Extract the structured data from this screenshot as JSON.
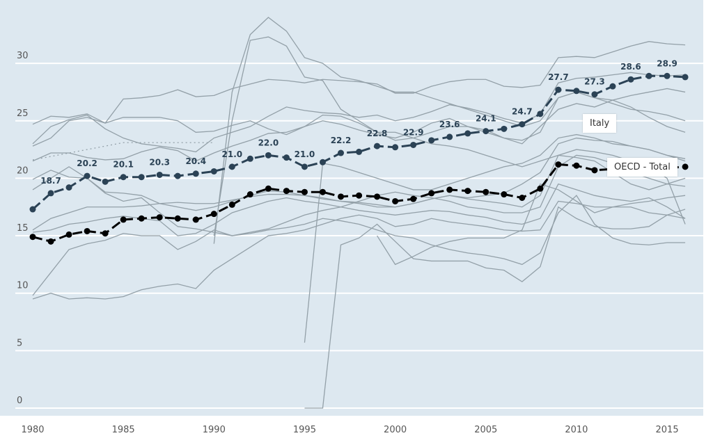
{
  "chart_data": {
    "type": "line",
    "xlim": [
      1980,
      2016
    ],
    "ylim": [
      0,
      30
    ],
    "x_ticks": [
      "1980",
      "1985",
      "1990",
      "1995",
      "2000",
      "2005",
      "2010",
      "2015"
    ],
    "y_ticks": [
      "0",
      "5",
      "10",
      "15",
      "20",
      "25",
      "30"
    ],
    "grid": true,
    "colors": {
      "background": "#dde8f0",
      "grid": "#ffffff",
      "other": "#93a0a8",
      "italy": "#2b4255",
      "oecd": "#000000"
    },
    "highlight": [
      {
        "name": "Italy",
        "style": "dashed",
        "x": [
          1980,
          1981,
          1982,
          1983,
          1984,
          1985,
          1986,
          1987,
          1988,
          1989,
          1990,
          1991,
          1992,
          1993,
          1994,
          1995,
          1996,
          1997,
          1998,
          1999,
          2000,
          2001,
          2002,
          2003,
          2004,
          2005,
          2006,
          2007,
          2008,
          2009,
          2010,
          2011,
          2012,
          2013,
          2014,
          2015,
          2016
        ],
        "values": [
          17.3,
          18.7,
          19.2,
          20.2,
          19.7,
          20.1,
          20.1,
          20.3,
          20.2,
          20.4,
          20.6,
          21.0,
          21.7,
          22.0,
          21.8,
          21.0,
          21.4,
          22.2,
          22.3,
          22.8,
          22.7,
          22.9,
          23.3,
          23.6,
          23.9,
          24.1,
          24.3,
          24.7,
          25.6,
          27.7,
          27.6,
          27.3,
          28.0,
          28.6,
          28.9,
          28.9,
          28.8
        ],
        "labels": {
          "1981": "18.7",
          "1983": "20.2",
          "1985": "20.1",
          "1987": "20.3",
          "1989": "20.4",
          "1991": "21.0",
          "1993": "22.0",
          "1995": "21.0",
          "1997": "22.2",
          "1999": "22.8",
          "2001": "22.9",
          "2003": "23.6",
          "2005": "24.1",
          "2007": "24.7",
          "2009": "27.7",
          "2011": "27.3",
          "2013": "28.6",
          "2015": "28.9"
        }
      },
      {
        "name": "OECD - Total",
        "style": "dashed",
        "x": [
          1980,
          1981,
          1982,
          1983,
          1984,
          1985,
          1986,
          1987,
          1988,
          1989,
          1990,
          1991,
          1992,
          1993,
          1994,
          1995,
          1996,
          1997,
          1998,
          1999,
          2000,
          2001,
          2002,
          2003,
          2004,
          2005,
          2006,
          2007,
          2008,
          2009,
          2010,
          2011,
          2012,
          2013,
          2014,
          2015,
          2016
        ],
        "values": [
          14.9,
          14.5,
          15.1,
          15.4,
          15.2,
          16.4,
          16.5,
          16.6,
          16.5,
          16.4,
          16.9,
          17.7,
          18.6,
          19.1,
          18.9,
          18.8,
          18.8,
          18.4,
          18.5,
          18.4,
          18.0,
          18.2,
          18.7,
          19.0,
          18.9,
          18.8,
          18.6,
          18.3,
          19.1,
          21.2,
          21.1,
          20.7,
          20.8,
          20.9,
          20.9,
          20.9,
          21.0
        ]
      }
    ],
    "others": [
      {
        "start": 1980,
        "values": [
          24.7,
          25.4,
          25.3,
          25.6,
          24.8,
          26.9,
          27.0,
          27.2,
          27.7,
          27.1,
          27.2,
          27.8,
          28.2,
          28.6,
          28.5,
          28.3,
          28.6,
          28.5,
          28.4,
          28.2,
          27.4,
          27.4,
          28.0,
          28.4,
          28.6,
          28.6,
          28.0,
          27.9,
          28.1,
          30.5,
          30.6,
          30.5,
          31.0,
          31.5,
          31.9,
          31.7,
          31.6
        ]
      },
      {
        "start": 1980,
        "values": [
          23.0,
          24.5,
          25.1,
          25.5,
          24.3,
          23.5,
          23.0,
          22.8,
          22.6,
          22.3,
          23.5,
          24.0,
          24.5,
          25.4,
          26.2,
          25.9,
          25.7,
          25.6,
          25.3,
          25.5,
          25.0,
          25.3,
          25.8,
          26.4,
          26.1,
          25.7,
          25.2,
          24.8,
          25.6,
          28.3,
          28.7,
          28.8,
          29.0,
          29.2,
          29.0,
          28.9,
          29.0
        ]
      },
      {
        "start": 1980,
        "values": [
          22.8,
          23.5,
          25.0,
          25.3,
          24.8,
          25.3,
          25.3,
          25.3,
          25.0,
          24.0,
          24.1,
          24.6,
          25.0,
          24.3,
          23.8,
          24.5,
          25.5,
          25.4,
          24.8,
          24.0,
          23.3,
          23.5,
          24.0,
          24.5,
          24.5,
          24.0,
          23.5,
          23.3,
          24.0,
          27.0,
          27.5,
          27.0,
          26.8,
          26.2,
          25.3,
          24.5,
          24.0
        ]
      },
      {
        "start": 1980,
        "values": [
          21.5,
          22.2,
          22.2,
          21.8,
          21.6,
          21.7,
          22.3,
          22.7,
          22.4,
          21.5,
          22.2,
          22.8,
          23.3,
          23.9,
          24.0,
          24.5,
          25.0,
          24.7,
          24.2,
          23.8,
          23.5,
          24.0,
          24.8,
          25.2,
          24.5,
          24.2,
          23.5,
          23.0,
          24.5,
          26.0,
          26.5,
          26.2,
          26.8,
          27.2,
          27.5,
          27.8,
          27.5
        ]
      },
      {
        "start": 1980,
        "values": [
          19.9,
          20.7,
          20.1,
          20.0,
          18.7,
          18.0,
          18.3,
          17.0,
          15.8,
          15.6,
          15.3,
          15.0,
          15.3,
          15.6,
          16.2,
          16.8,
          17.2,
          17.5,
          18.0,
          18.5,
          18.8,
          18.5,
          18.3,
          18.0,
          17.5,
          17.3,
          17.0,
          17.0,
          17.5,
          21.0,
          22.0,
          21.8,
          21.3,
          20.5,
          20.0,
          19.5,
          19.3
        ]
      },
      {
        "start": 1980,
        "values": [
          19.0,
          20.0,
          21.0,
          20.0,
          18.8,
          18.7,
          18.5,
          17.8,
          17.5,
          17.2,
          17.5,
          18.0,
          18.5,
          18.9,
          18.8,
          18.5,
          18.3,
          18.0,
          17.8,
          17.5,
          17.5,
          17.8,
          18.2,
          18.5,
          18.3,
          18.5,
          18.7,
          19.5,
          20.5,
          23.0,
          23.5,
          23.3,
          23.2,
          22.8,
          22.5,
          22.0,
          21.5
        ]
      },
      {
        "start": 1980,
        "values": [
          15.5,
          16.5,
          17.0,
          17.5,
          17.5,
          17.5,
          17.6,
          17.8,
          17.9,
          17.8,
          17.8,
          18.1,
          18.4,
          18.6,
          18.6,
          18.5,
          18.2,
          18.0,
          17.9,
          17.7,
          17.5,
          17.8,
          18.2,
          18.5,
          18.2,
          18.0,
          17.8,
          17.5,
          18.5,
          22.0,
          21.8,
          21.5,
          20.5,
          19.5,
          19.0,
          19.5,
          20.0
        ]
      },
      {
        "start": 1980,
        "values": [
          15.3,
          15.5,
          16.0,
          16.2,
          16.5,
          16.7,
          16.5,
          16.3,
          15.0,
          15.2,
          16.0,
          17.0,
          17.5,
          18.0,
          18.3,
          18.0,
          17.8,
          17.5,
          17.2,
          17.0,
          16.8,
          17.0,
          17.2,
          17.1,
          16.8,
          16.6,
          16.2,
          16.0,
          16.5,
          19.5,
          19.0,
          18.5,
          18.2,
          18.0,
          18.3,
          17.5,
          16.5
        ]
      },
      {
        "start": 1980,
        "values": [
          9.5,
          10.0,
          9.5,
          9.6,
          9.5,
          9.7,
          10.3,
          10.6,
          10.8,
          10.4,
          12.0,
          13.0,
          14.0,
          15.0,
          15.2,
          15.5,
          16.0,
          16.5,
          16.8,
          16.5,
          15.8,
          16.0,
          16.5,
          16.2,
          16.0,
          15.8,
          15.5,
          15.4,
          15.5,
          18.0,
          17.8,
          17.5,
          17.5,
          17.8,
          18.0,
          18.3,
          18.5
        ]
      },
      {
        "start": 1980,
        "values": [
          9.8,
          11.8,
          13.8,
          14.3,
          14.6,
          15.2,
          15.0,
          15.0,
          13.8,
          14.5,
          15.5,
          15.0,
          15.2,
          15.5,
          15.7,
          16.0,
          16.5,
          16.3,
          16.0,
          15.5,
          15.0,
          14.8,
          14.2,
          13.8,
          13.5,
          13.3,
          13.0,
          12.5,
          13.5,
          17.0,
          18.5,
          16.0,
          14.8,
          14.3,
          14.2,
          14.4,
          14.4
        ]
      },
      {
        "start": 1990,
        "values": [
          14.3,
          27.5,
          32.5,
          34.0,
          32.8,
          30.5,
          30.0,
          28.8,
          28.5,
          28.0,
          27.5,
          27.5,
          27.0,
          26.5,
          26.0,
          25.5,
          25.0,
          24.5,
          25.0,
          27.0,
          27.5,
          27.0,
          26.5,
          26.0,
          25.8,
          25.5,
          25.0
        ]
      },
      {
        "start": 1990,
        "values": [
          15.0,
          25.0,
          32.0,
          32.3,
          31.5,
          28.8,
          28.5,
          26.0,
          25.0,
          24.0,
          24.0,
          23.5,
          23.0,
          22.8,
          22.5,
          22.0,
          21.5,
          21.0,
          21.5,
          22.0,
          22.5,
          22.3,
          22.0,
          21.5,
          21.0,
          20.0,
          16.0
        ]
      },
      {
        "start": 1995,
        "values": [
          5.7,
          21.3,
          21.0,
          20.5,
          20.0,
          19.5,
          19.0,
          19.0,
          19.5,
          20.0,
          20.5,
          21.0,
          21.3,
          22.0,
          23.5,
          23.8,
          23.5,
          23.0,
          22.8,
          22.5,
          22.0,
          21.7
        ]
      },
      {
        "start": 1995,
        "values": [
          0,
          0,
          14.2,
          14.8,
          16.0,
          14.5,
          13.0,
          12.8,
          12.8,
          12.8,
          12.2,
          12.0,
          11.0,
          12.3,
          17.5,
          16.5,
          15.8,
          15.6,
          15.6,
          15.8,
          16.8,
          17.3
        ]
      },
      {
        "start": 1999,
        "values": [
          15.0,
          12.5,
          13.2,
          14.0,
          14.5,
          14.8,
          14.8,
          14.8,
          15.5,
          19.5,
          19.0,
          18.0,
          17.0,
          17.5,
          17.5,
          17.0,
          16.8,
          16.5
        ]
      }
    ]
  }
}
